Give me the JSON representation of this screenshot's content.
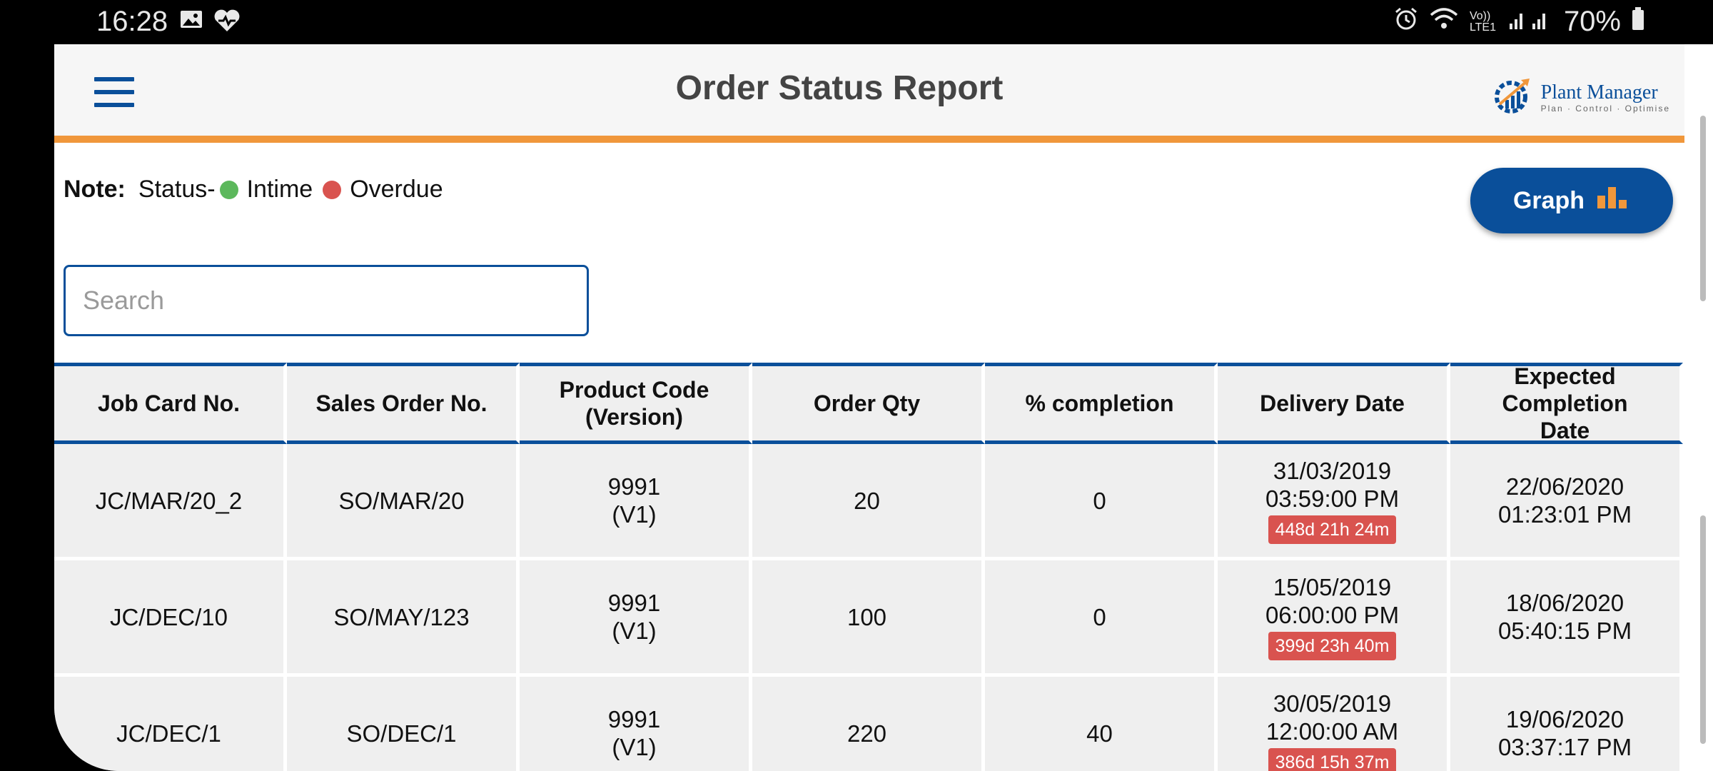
{
  "status_bar": {
    "time": "16:28",
    "battery": "70%",
    "carrier": "Vo)) LTE1"
  },
  "app": {
    "title": "Order Status Report",
    "logo_name": "Plant Manager",
    "logo_tagline": "Plan · Control · Optimise"
  },
  "note": {
    "label": "Note:",
    "status_prefix": "Status-",
    "intime": "Intime",
    "overdue": "Overdue",
    "intime_color": "#5cb85c",
    "overdue_color": "#d9534f"
  },
  "graph_button": {
    "label": "Graph"
  },
  "search": {
    "placeholder": "Search",
    "value": ""
  },
  "table": {
    "headers": [
      "Job Card No.",
      "Sales Order No.",
      "Product Code (Version)",
      "Order Qty",
      "% completion",
      "Delivery Date",
      "Expected Completion Date"
    ],
    "rows": [
      {
        "job_card": "JC/MAR/20_2",
        "sales_order": "SO/MAR/20",
        "product_code": "9991",
        "version": "(V1)",
        "order_qty": "20",
        "completion": "0",
        "delivery_date": "31/03/2019",
        "delivery_time": "03:59:00 PM",
        "overdue": "448d 21h 24m",
        "expected_date": "22/06/2020",
        "expected_time": "01:23:01 PM"
      },
      {
        "job_card": "JC/DEC/10",
        "sales_order": "SO/MAY/123",
        "product_code": "9991",
        "version": "(V1)",
        "order_qty": "100",
        "completion": "0",
        "delivery_date": "15/05/2019",
        "delivery_time": "06:00:00 PM",
        "overdue": "399d 23h 40m",
        "expected_date": "18/06/2020",
        "expected_time": "05:40:15 PM"
      },
      {
        "job_card": "JC/DEC/1",
        "sales_order": "SO/DEC/1",
        "product_code": "9991",
        "version": "(V1)",
        "order_qty": "220",
        "completion": "40",
        "delivery_date": "30/05/2019",
        "delivery_time": "12:00:00 AM",
        "overdue": "386d 15h 37m",
        "expected_date": "19/06/2020",
        "expected_time": "03:37:17 PM"
      }
    ]
  }
}
